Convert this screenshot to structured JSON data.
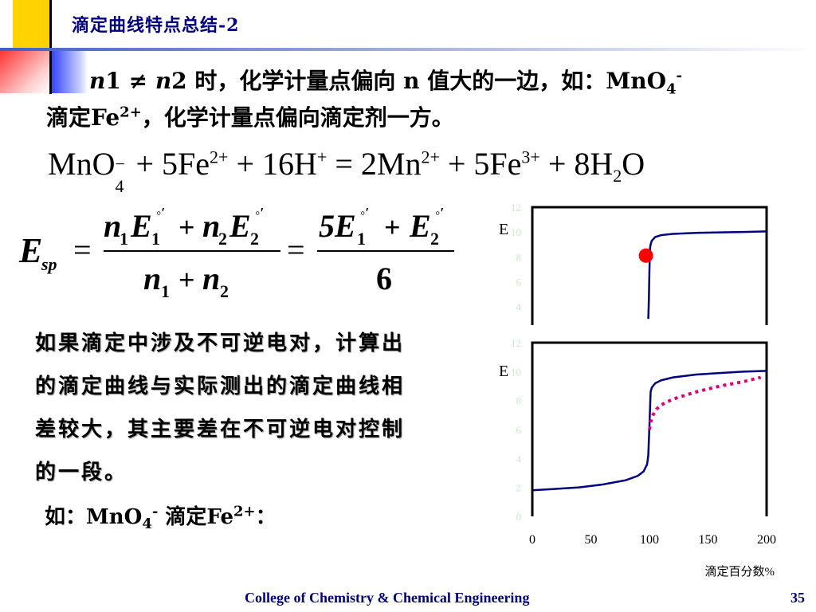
{
  "slide": {
    "title": "滴定曲线特点总结-2",
    "line1_text": "时，化学计量点偏向 n 值大的一边，如：MnO",
    "line1_sup": "-",
    "line1_sub": "4",
    "line2_pre": "滴定Fe",
    "line2_sup": "2+",
    "line2_post": "，化学计量点偏向滴定剂一方。",
    "n1": "n",
    "n1_idx": "1",
    "neq": "≠",
    "n2_idx": "2",
    "paragraph": "如果滴定中涉及不可逆电对，计算出的滴定曲线与实际测出的滴定曲线相差较大，其主要差在不可逆电对控制的一段。",
    "example_pre": "如：MnO",
    "example_sub": "4",
    "example_sup": "-",
    "example_mid": " 滴定Fe",
    "example_sup2": "2+",
    "example_post": "："
  },
  "equation": {
    "left": "MnO",
    "left_sub": "4",
    "left_sup": "−",
    "t1": "+ 5Fe",
    "t1_sup": "2+",
    "t2": "+ 16H",
    "t2_sup": "+",
    "t3": "= 2Mn",
    "t3_sup": "2+",
    "t4": "+ 5Fe",
    "t4_sup": "3+",
    "t5": "+ 8H",
    "t5_sub": "2",
    "t6": "O"
  },
  "formula": {
    "E": "E",
    "E_sub": "sp",
    "eq": "=",
    "num1": "n",
    "num1_sub": "1",
    "E1": "E",
    "E1_sub": "1",
    "plus": "+",
    "num2": "n",
    "num2_sub": "2",
    "E2": "E",
    "E2_sub": "2",
    "den_n1": "n",
    "den_n1_sub": "1",
    "den_n2": "n",
    "den_n2_sub": "2",
    "eq2": "=",
    "num_r": "5E",
    "num_r_sub": "1",
    "num_r2": "E",
    "num_r2_sub": "2",
    "den_r": "6",
    "deg": "◦′"
  },
  "chart_data": [
    {
      "type": "line",
      "title": "",
      "ylabel": "E",
      "xlabel": "",
      "xlim": [
        0,
        200
      ],
      "yticks": [
        4,
        6,
        8,
        10,
        12
      ],
      "ylim_visible": [
        3,
        12
      ],
      "series": [
        {
          "x": [
            99,
            99.5,
            100,
            100.5,
            101,
            102,
            105,
            110,
            120,
            140,
            160,
            180,
            200
          ],
          "y": [
            3,
            4.5,
            7.0,
            8.7,
            9.0,
            9.3,
            9.6,
            9.75,
            9.85,
            9.93,
            9.97,
            10.0,
            10.05
          ],
          "color": "#000080"
        }
      ],
      "marker": {
        "x": 97,
        "y": 8.1,
        "color": "#ff0000"
      },
      "grid": false
    },
    {
      "type": "line",
      "title": "",
      "ylabel": "E",
      "xlabel": "滴定百分数%",
      "xlim": [
        0,
        200
      ],
      "ylim": [
        0,
        12
      ],
      "xticks": [
        0,
        50,
        100,
        150,
        200
      ],
      "yticks": [
        0,
        2,
        4,
        6,
        8,
        10,
        12
      ],
      "series": [
        {
          "x": [
            0,
            20,
            40,
            60,
            80,
            90,
            95,
            98,
            99,
            100,
            101,
            102,
            105,
            110,
            120,
            140,
            160,
            180,
            200
          ],
          "y": [
            1.8,
            1.9,
            2.0,
            2.2,
            2.5,
            2.8,
            3.1,
            3.6,
            4.2,
            6.3,
            8.6,
            8.9,
            9.2,
            9.4,
            9.6,
            9.8,
            9.9,
            10.0,
            10.05
          ],
          "color": "#000080",
          "style": "solid"
        },
        {
          "x": [
            100,
            101,
            103,
            106,
            110,
            120,
            140,
            160,
            180,
            195
          ],
          "y": [
            6.0,
            6.5,
            7.0,
            7.4,
            7.7,
            8.1,
            8.6,
            9.0,
            9.3,
            9.6
          ],
          "color": "#e0007a",
          "style": "dotted"
        }
      ],
      "grid": false
    }
  ],
  "footer": {
    "college": "College of Chemistry & Chemical Engineering",
    "page": "35"
  }
}
